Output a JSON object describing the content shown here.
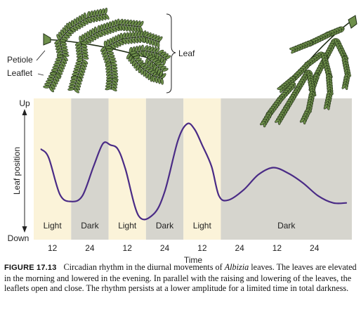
{
  "leaf_labels": {
    "leaf": "Leaf",
    "petiole": "Petiole",
    "leaflet": "Leaflet"
  },
  "axis": {
    "y_label": "Leaf position",
    "y_top": "Up",
    "y_bottom": "Down",
    "x_label": "Time"
  },
  "colors": {
    "light_band": "#fbf3d9",
    "dark_band": "#d6d5ce",
    "curve": "#4a2b86",
    "leaf_fill": "#6e8f4b",
    "leaf_stroke": "#1e2c14"
  },
  "chart_data": {
    "type": "line",
    "x_ticks": [
      "12",
      "24",
      "12",
      "24",
      "12",
      "24",
      "12",
      "24"
    ],
    "bands": [
      {
        "label": "Light",
        "kind": "light",
        "from": 0,
        "to": 1
      },
      {
        "label": "Dark",
        "kind": "dark",
        "from": 1,
        "to": 2
      },
      {
        "label": "Light",
        "kind": "light",
        "from": 2,
        "to": 3
      },
      {
        "label": "Dark",
        "kind": "dark",
        "from": 3,
        "to": 4
      },
      {
        "label": "Light",
        "kind": "light",
        "from": 4,
        "to": 5
      },
      {
        "label": "Dark",
        "kind": "dark",
        "from": 5,
        "to": 8.5
      }
    ],
    "xlim": [
      0,
      8.5
    ],
    "ylim": [
      0,
      1
    ],
    "series": [
      {
        "x": [
          0.2,
          0.4,
          0.7,
          1.0,
          1.3,
          1.6,
          1.85,
          2.05,
          2.25,
          2.45,
          2.8,
          3.2,
          3.5,
          3.85,
          4.1,
          4.3,
          4.5,
          4.75,
          4.95,
          5.2,
          5.6,
          6.0,
          6.4,
          6.8,
          7.2,
          7.6,
          8.0,
          8.35
        ],
        "y": [
          0.64,
          0.58,
          0.32,
          0.27,
          0.31,
          0.52,
          0.68,
          0.67,
          0.64,
          0.5,
          0.17,
          0.18,
          0.34,
          0.7,
          0.82,
          0.78,
          0.67,
          0.52,
          0.31,
          0.28,
          0.35,
          0.46,
          0.51,
          0.47,
          0.4,
          0.31,
          0.26,
          0.26
        ]
      }
    ]
  },
  "caption": {
    "number": "FIGURE 17.13",
    "text_before": "Circadian rhythm in the diurnal movements of ",
    "species": "Albizia",
    "text_after": " leaves. The leaves are elevated in the morning and lowered in the evening. In parallel with the raising and lowering of the leaves, the leaflets open and close. The rhythm persists at a lower amplitude for a limited time in total darkness."
  }
}
